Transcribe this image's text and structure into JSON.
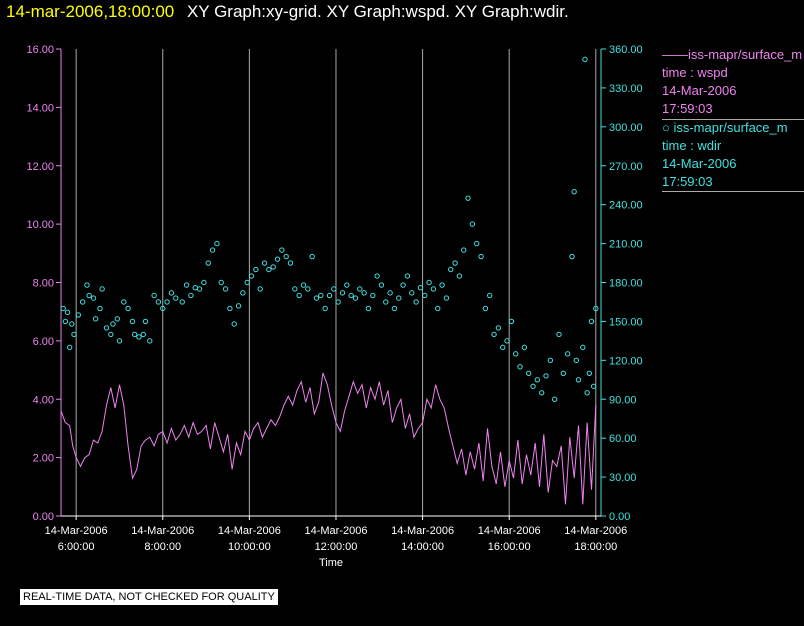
{
  "header": {
    "time": "14-mar-2006,18:00:00",
    "graph_titles": "XY Graph:xy-grid.  XY Graph:wspd.  XY Graph:wdir."
  },
  "legend": {
    "series1": {
      "line": "——iss-mapr/surface_m",
      "var": "time : wspd",
      "date": "14-Mar-2006",
      "time": "17:59:03"
    },
    "series2": {
      "line": "○  iss-mapr/surface_m",
      "var": "time : wdir",
      "date": "14-Mar-2006",
      "time": "17:59:03"
    }
  },
  "disclaimer": "REAL-TIME DATA, NOT CHECKED FOR QUALITY",
  "colors": {
    "wspd": "#ee82ee",
    "wdir": "#40e0e0",
    "grid": "#aaaaaa",
    "axis_left": "#ee82ee",
    "axis_right": "#40e0e0"
  },
  "chart_data": {
    "type": "line",
    "xlabel": "Time",
    "x_ticks": [
      {
        "date": "14-Mar-2006",
        "time": "6:00:00",
        "hour": 6
      },
      {
        "date": "14-Mar-2006",
        "time": "8:00:00",
        "hour": 8
      },
      {
        "date": "14-Mar-2006",
        "time": "10:00:00",
        "hour": 10
      },
      {
        "date": "14-Mar-2006",
        "time": "12:00:00",
        "hour": 12
      },
      {
        "date": "14-Mar-2006",
        "time": "14:00:00",
        "hour": 14
      },
      {
        "date": "14-Mar-2006",
        "time": "16:00:00",
        "hour": 16
      },
      {
        "date": "14-Mar-2006",
        "time": "18:00:00",
        "hour": 18
      }
    ],
    "xlim": [
      5.65,
      18.12
    ],
    "left_axis": {
      "ylim": [
        0,
        16
      ],
      "ticks": [
        "0.00",
        "2.00",
        "4.00",
        "6.00",
        "8.00",
        "10.00",
        "12.00",
        "14.00",
        "16.00"
      ]
    },
    "right_axis": {
      "ylim": [
        0,
        360
      ],
      "ticks": [
        "0.00",
        "30.00",
        "60.00",
        "90.00",
        "120.00",
        "150.00",
        "180.00",
        "210.00",
        "240.00",
        "270.00",
        "300.00",
        "330.00",
        "360.00"
      ]
    },
    "series": [
      {
        "name": "wspd",
        "style": "line",
        "axis": "left",
        "points": [
          [
            5.65,
            3.6
          ],
          [
            5.75,
            3.2
          ],
          [
            5.85,
            3.1
          ],
          [
            5.92,
            2.4
          ],
          [
            6.0,
            2.0
          ],
          [
            6.1,
            1.7
          ],
          [
            6.2,
            2.0
          ],
          [
            6.3,
            2.1
          ],
          [
            6.4,
            2.6
          ],
          [
            6.5,
            2.5
          ],
          [
            6.6,
            2.9
          ],
          [
            6.7,
            3.8
          ],
          [
            6.8,
            4.4
          ],
          [
            6.9,
            3.7
          ],
          [
            7.0,
            4.5
          ],
          [
            7.1,
            3.8
          ],
          [
            7.2,
            2.4
          ],
          [
            7.3,
            1.3
          ],
          [
            7.4,
            1.6
          ],
          [
            7.5,
            2.4
          ],
          [
            7.6,
            2.6
          ],
          [
            7.7,
            2.7
          ],
          [
            7.8,
            2.4
          ],
          [
            7.9,
            2.8
          ],
          [
            8.0,
            2.9
          ],
          [
            8.1,
            2.5
          ],
          [
            8.2,
            3.0
          ],
          [
            8.3,
            2.6
          ],
          [
            8.4,
            2.8
          ],
          [
            8.5,
            3.1
          ],
          [
            8.6,
            2.7
          ],
          [
            8.7,
            3.2
          ],
          [
            8.8,
            2.8
          ],
          [
            8.9,
            2.9
          ],
          [
            9.0,
            3.1
          ],
          [
            9.1,
            2.3
          ],
          [
            9.2,
            3.2
          ],
          [
            9.3,
            2.7
          ],
          [
            9.4,
            2.2
          ],
          [
            9.5,
            2.8
          ],
          [
            9.6,
            1.6
          ],
          [
            9.7,
            2.5
          ],
          [
            9.8,
            2.1
          ],
          [
            9.9,
            2.9
          ],
          [
            10.0,
            2.6
          ],
          [
            10.1,
            3.0
          ],
          [
            10.2,
            3.2
          ],
          [
            10.3,
            2.7
          ],
          [
            10.4,
            3.0
          ],
          [
            10.5,
            3.3
          ],
          [
            10.6,
            3.1
          ],
          [
            10.7,
            3.4
          ],
          [
            10.8,
            3.8
          ],
          [
            10.9,
            4.1
          ],
          [
            11.0,
            3.8
          ],
          [
            11.1,
            4.3
          ],
          [
            11.2,
            4.6
          ],
          [
            11.3,
            3.9
          ],
          [
            11.4,
            4.4
          ],
          [
            11.5,
            3.5
          ],
          [
            11.6,
            3.9
          ],
          [
            11.7,
            4.9
          ],
          [
            11.8,
            4.5
          ],
          [
            11.9,
            3.8
          ],
          [
            12.0,
            3.2
          ],
          [
            12.1,
            2.9
          ],
          [
            12.2,
            3.6
          ],
          [
            12.3,
            4.1
          ],
          [
            12.4,
            4.6
          ],
          [
            12.5,
            4.2
          ],
          [
            12.6,
            4.5
          ],
          [
            12.7,
            3.7
          ],
          [
            12.8,
            4.4
          ],
          [
            12.9,
            4.0
          ],
          [
            13.0,
            4.6
          ],
          [
            13.1,
            3.8
          ],
          [
            13.2,
            4.3
          ],
          [
            13.3,
            3.2
          ],
          [
            13.4,
            3.7
          ],
          [
            13.5,
            4.0
          ],
          [
            13.6,
            3.0
          ],
          [
            13.7,
            3.5
          ],
          [
            13.8,
            2.7
          ],
          [
            13.9,
            3.0
          ],
          [
            14.0,
            3.2
          ],
          [
            14.1,
            4.0
          ],
          [
            14.2,
            3.7
          ],
          [
            14.3,
            4.5
          ],
          [
            14.4,
            4.0
          ],
          [
            14.5,
            3.7
          ],
          [
            14.6,
            3.0
          ],
          [
            14.7,
            2.4
          ],
          [
            14.8,
            1.8
          ],
          [
            14.9,
            2.3
          ],
          [
            15.0,
            1.4
          ],
          [
            15.1,
            2.2
          ],
          [
            15.2,
            1.6
          ],
          [
            15.3,
            2.5
          ],
          [
            15.4,
            1.2
          ],
          [
            15.5,
            3.0
          ],
          [
            15.6,
            1.7
          ],
          [
            15.7,
            1.1
          ],
          [
            15.8,
            2.2
          ],
          [
            15.9,
            1.0
          ],
          [
            16.0,
            1.9
          ],
          [
            16.1,
            1.3
          ],
          [
            16.2,
            2.6
          ],
          [
            16.3,
            1.1
          ],
          [
            16.4,
            2.1
          ],
          [
            16.5,
            1.4
          ],
          [
            16.6,
            2.5
          ],
          [
            16.7,
            1.0
          ],
          [
            16.8,
            2.8
          ],
          [
            16.9,
            0.8
          ],
          [
            17.0,
            1.9
          ],
          [
            17.1,
            1.7
          ],
          [
            17.2,
            2.4
          ],
          [
            17.3,
            0.4
          ],
          [
            17.4,
            2.7
          ],
          [
            17.5,
            1.3
          ],
          [
            17.6,
            3.1
          ],
          [
            17.7,
            0.4
          ],
          [
            17.8,
            3.2
          ],
          [
            17.9,
            0.9
          ],
          [
            18.0,
            3.8
          ]
        ]
      },
      {
        "name": "wdir",
        "style": "scatter",
        "axis": "right",
        "points": [
          [
            5.7,
            160
          ],
          [
            5.75,
            150
          ],
          [
            5.8,
            157
          ],
          [
            5.85,
            130
          ],
          [
            5.9,
            148
          ],
          [
            5.95,
            140
          ],
          [
            6.05,
            155
          ],
          [
            6.15,
            165
          ],
          [
            6.25,
            178
          ],
          [
            6.3,
            170
          ],
          [
            6.4,
            168
          ],
          [
            6.45,
            152
          ],
          [
            6.55,
            160
          ],
          [
            6.6,
            175
          ],
          [
            6.7,
            145
          ],
          [
            6.8,
            140
          ],
          [
            6.85,
            148
          ],
          [
            6.95,
            152
          ],
          [
            7.0,
            135
          ],
          [
            7.1,
            165
          ],
          [
            7.2,
            160
          ],
          [
            7.3,
            150
          ],
          [
            7.35,
            140
          ],
          [
            7.45,
            138
          ],
          [
            7.55,
            140
          ],
          [
            7.6,
            150
          ],
          [
            7.7,
            135
          ],
          [
            7.8,
            170
          ],
          [
            7.9,
            165
          ],
          [
            8.0,
            160
          ],
          [
            8.1,
            165
          ],
          [
            8.2,
            172
          ],
          [
            8.3,
            168
          ],
          [
            8.45,
            165
          ],
          [
            8.55,
            178
          ],
          [
            8.65,
            170
          ],
          [
            8.75,
            176
          ],
          [
            8.85,
            175
          ],
          [
            8.95,
            180
          ],
          [
            9.05,
            195
          ],
          [
            9.15,
            205
          ],
          [
            9.25,
            210
          ],
          [
            9.35,
            180
          ],
          [
            9.45,
            175
          ],
          [
            9.55,
            160
          ],
          [
            9.65,
            148
          ],
          [
            9.75,
            162
          ],
          [
            9.85,
            172
          ],
          [
            9.95,
            180
          ],
          [
            10.05,
            185
          ],
          [
            10.15,
            190
          ],
          [
            10.25,
            175
          ],
          [
            10.35,
            195
          ],
          [
            10.45,
            190
          ],
          [
            10.55,
            192
          ],
          [
            10.65,
            198
          ],
          [
            10.75,
            205
          ],
          [
            10.85,
            200
          ],
          [
            10.95,
            195
          ],
          [
            11.05,
            175
          ],
          [
            11.15,
            170
          ],
          [
            11.25,
            178
          ],
          [
            11.35,
            175
          ],
          [
            11.45,
            200
          ],
          [
            11.55,
            168
          ],
          [
            11.65,
            170
          ],
          [
            11.75,
            160
          ],
          [
            11.85,
            170
          ],
          [
            11.95,
            175
          ],
          [
            12.05,
            165
          ],
          [
            12.15,
            172
          ],
          [
            12.25,
            178
          ],
          [
            12.35,
            170
          ],
          [
            12.45,
            168
          ],
          [
            12.55,
            175
          ],
          [
            12.65,
            172
          ],
          [
            12.75,
            160
          ],
          [
            12.85,
            170
          ],
          [
            12.95,
            185
          ],
          [
            13.05,
            178
          ],
          [
            13.15,
            165
          ],
          [
            13.25,
            172
          ],
          [
            13.35,
            160
          ],
          [
            13.45,
            168
          ],
          [
            13.55,
            178
          ],
          [
            13.65,
            185
          ],
          [
            13.75,
            172
          ],
          [
            13.85,
            165
          ],
          [
            13.95,
            176
          ],
          [
            14.05,
            170
          ],
          [
            14.15,
            180
          ],
          [
            14.25,
            175
          ],
          [
            14.35,
            160
          ],
          [
            14.45,
            178
          ],
          [
            14.55,
            168
          ],
          [
            14.65,
            190
          ],
          [
            14.75,
            195
          ],
          [
            14.85,
            185
          ],
          [
            14.95,
            205
          ],
          [
            15.05,
            245
          ],
          [
            15.15,
            225
          ],
          [
            15.25,
            210
          ],
          [
            15.35,
            200
          ],
          [
            15.45,
            160
          ],
          [
            15.55,
            170
          ],
          [
            15.65,
            140
          ],
          [
            15.75,
            145
          ],
          [
            15.85,
            130
          ],
          [
            15.95,
            135
          ],
          [
            16.05,
            150
          ],
          [
            16.15,
            125
          ],
          [
            16.25,
            115
          ],
          [
            16.35,
            130
          ],
          [
            16.45,
            110
          ],
          [
            16.55,
            100
          ],
          [
            16.65,
            105
          ],
          [
            16.75,
            95
          ],
          [
            16.85,
            108
          ],
          [
            16.95,
            120
          ],
          [
            17.05,
            90
          ],
          [
            17.15,
            140
          ],
          [
            17.25,
            110
          ],
          [
            17.35,
            125
          ],
          [
            17.45,
            200
          ],
          [
            17.5,
            250
          ],
          [
            17.55,
            120
          ],
          [
            17.6,
            105
          ],
          [
            17.7,
            130
          ],
          [
            17.75,
            352
          ],
          [
            17.8,
            95
          ],
          [
            17.85,
            110
          ],
          [
            17.9,
            150
          ],
          [
            17.95,
            100
          ],
          [
            18.0,
            160
          ]
        ]
      }
    ]
  }
}
